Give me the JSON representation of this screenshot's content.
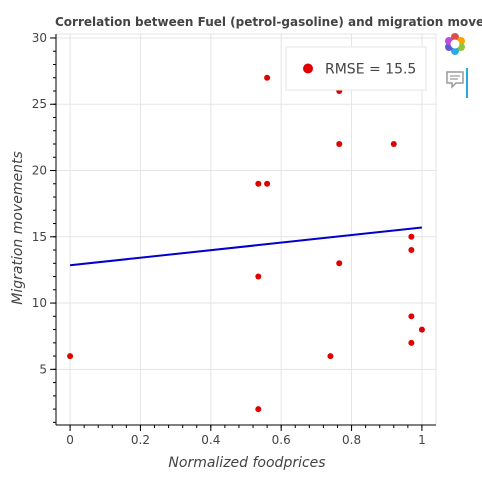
{
  "chart_data": {
    "type": "scatter",
    "title": "Correlation between Fuel (petrol-gasoline) and migration movements",
    "xlabel": "Normalized foodprices",
    "ylabel": "Migration movements",
    "xlim": [
      -0.04,
      1.04
    ],
    "ylim": [
      0.8,
      30.3
    ],
    "xticks": [
      "0",
      "0.2",
      "0.4",
      "0.6",
      "0.8",
      "1"
    ],
    "xtick_values": [
      0,
      0.2,
      0.4,
      0.6,
      0.8,
      1
    ],
    "yticks": [
      "5",
      "10",
      "15",
      "20",
      "25",
      "30"
    ],
    "ytick_values": [
      5,
      10,
      15,
      20,
      25,
      30
    ],
    "grid": true,
    "legend_placement": "top-right",
    "series": [
      {
        "name": "RMSE = 15.5",
        "kind": "scatter",
        "color": "#e00000",
        "points": [
          {
            "x": 0.0,
            "y": 6
          },
          {
            "x": 0.535,
            "y": 19
          },
          {
            "x": 0.56,
            "y": 19
          },
          {
            "x": 0.535,
            "y": 12
          },
          {
            "x": 0.535,
            "y": 2
          },
          {
            "x": 0.56,
            "y": 27
          },
          {
            "x": 0.74,
            "y": 6
          },
          {
            "x": 0.765,
            "y": 29
          },
          {
            "x": 0.765,
            "y": 26
          },
          {
            "x": 0.765,
            "y": 22
          },
          {
            "x": 0.765,
            "y": 13
          },
          {
            "x": 0.92,
            "y": 22
          },
          {
            "x": 0.97,
            "y": 15
          },
          {
            "x": 0.97,
            "y": 14
          },
          {
            "x": 0.97,
            "y": 9
          },
          {
            "x": 0.97,
            "y": 7
          },
          {
            "x": 1.0,
            "y": 8
          }
        ]
      },
      {
        "kind": "line",
        "color": "#0000cc",
        "points": [
          {
            "x": 0.0,
            "y": 12.85
          },
          {
            "x": 1.0,
            "y": 15.7
          }
        ]
      }
    ]
  },
  "toolbar": {
    "logo_icon": "bokeh-logo-icon",
    "hover_icon": "hover-tool-icon"
  }
}
